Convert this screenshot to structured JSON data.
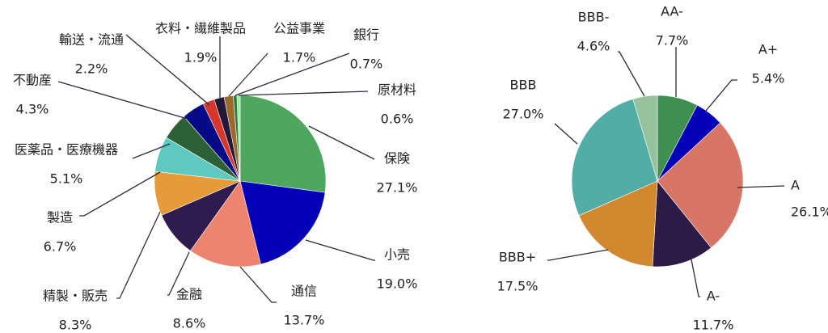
{
  "chart_data": [
    {
      "type": "pie",
      "title": "",
      "start": "top",
      "direction": "clockwise",
      "slices": [
        {
          "label": "保険",
          "value": "27.1%",
          "pct": 27.1,
          "color": "#4ea65f"
        },
        {
          "label": "小売",
          "value": "19.0%",
          "pct": 19.0,
          "color": "#0300b8"
        },
        {
          "label": "通信",
          "value": "13.7%",
          "pct": 13.7,
          "color": "#ee8470"
        },
        {
          "label": "金融",
          "value": "8.6%",
          "pct": 8.6,
          "color": "#2f1b4d"
        },
        {
          "label": "精製・販売",
          "value": "8.3%",
          "pct": 8.3,
          "color": "#e59c38"
        },
        {
          "label": "製造",
          "value": "6.7%",
          "pct": 6.7,
          "color": "#5ec9c0"
        },
        {
          "label": "医薬品・医療機器",
          "value": "5.1%",
          "pct": 5.1,
          "color": "#2d6034"
        },
        {
          "label": "不動産",
          "value": "4.3%",
          "pct": 4.3,
          "color": "#050a86"
        },
        {
          "label": "輸送・流通",
          "value": "2.2%",
          "pct": 2.2,
          "color": "#d7372a"
        },
        {
          "label": "衣料・繊維製品",
          "value": "1.9%",
          "pct": 1.9,
          "color": "#231838"
        },
        {
          "label": "公益事業",
          "value": "1.7%",
          "pct": 1.7,
          "color": "#9b6a2c"
        },
        {
          "label": "銀行",
          "value": "0.7%",
          "pct": 0.7,
          "color": "#2f7d3d"
        },
        {
          "label": "原材料",
          "value": "0.6%",
          "pct": 0.6,
          "color": "#8cf29a"
        }
      ]
    },
    {
      "type": "pie",
      "title": "",
      "start": "top",
      "direction": "clockwise",
      "slices": [
        {
          "label": "AA-",
          "value": "7.7%",
          "pct": 7.7,
          "color": "#3f8f50"
        },
        {
          "label": "A+",
          "value": "5.4%",
          "pct": 5.4,
          "color": "#0300b8"
        },
        {
          "label": "A",
          "value": "26.1%",
          "pct": 26.1,
          "color": "#d77666"
        },
        {
          "label": "A-",
          "value": "11.7%",
          "pct": 11.7,
          "color": "#2c1a47"
        },
        {
          "label": "BBB+",
          "value": "17.5%",
          "pct": 17.5,
          "color": "#d1882e"
        },
        {
          "label": "BBB",
          "value": "27.0%",
          "pct": 27.0,
          "color": "#53ada7"
        },
        {
          "label": "BBB-",
          "value": "4.6%",
          "pct": 4.6,
          "color": "#93c29b"
        }
      ]
    }
  ]
}
